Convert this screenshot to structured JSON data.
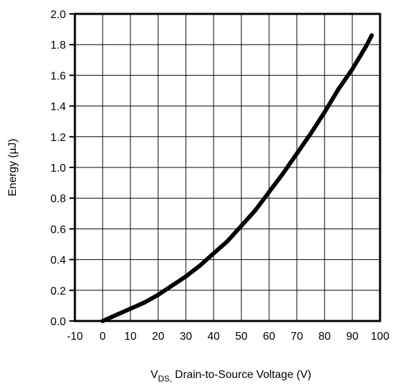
{
  "chart_data": {
    "type": "line",
    "title": "",
    "xlabel_main": "V",
    "xlabel_sub": "DS,",
    "xlabel_rest": " Drain-to-Source Voltage (V)",
    "ylabel": "Energy (µJ)",
    "xlim": [
      -10,
      100
    ],
    "ylim": [
      0.0,
      2.0
    ],
    "xticks": [
      "-10",
      "0",
      "10",
      "20",
      "30",
      "40",
      "50",
      "60",
      "70",
      "80",
      "90",
      "100"
    ],
    "yticks": [
      "0.0",
      "0.2",
      "0.4",
      "0.6",
      "0.8",
      "1.0",
      "1.2",
      "1.4",
      "1.6",
      "1.8",
      "2.0"
    ],
    "grid": true,
    "legend": "none",
    "series_color": "#000000",
    "series": [
      {
        "x": [
          0,
          5,
          10,
          15,
          20,
          25,
          30,
          35,
          40,
          45,
          50,
          55,
          60,
          65,
          70,
          75,
          80,
          85,
          90,
          95,
          97
        ],
        "values": [
          0.0,
          0.04,
          0.08,
          0.12,
          0.17,
          0.23,
          0.29,
          0.36,
          0.44,
          0.52,
          0.62,
          0.72,
          0.84,
          0.96,
          1.09,
          1.22,
          1.36,
          1.51,
          1.64,
          1.79,
          1.86
        ]
      }
    ]
  }
}
